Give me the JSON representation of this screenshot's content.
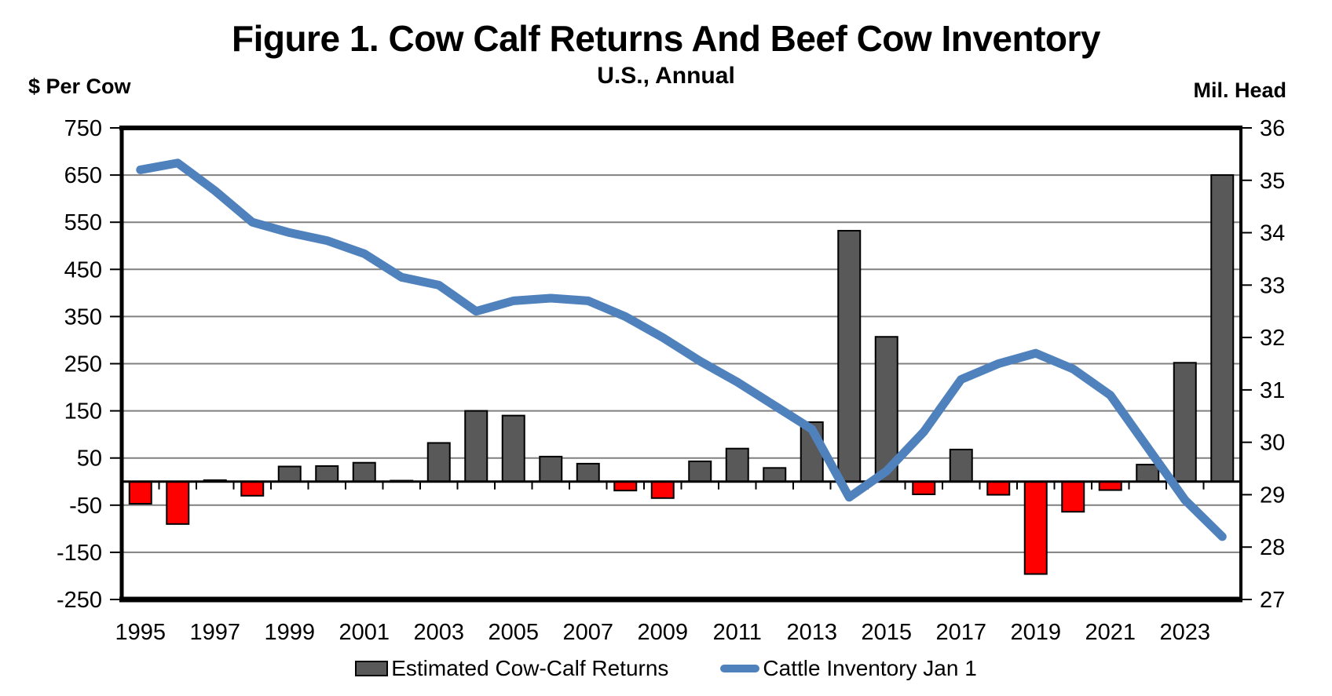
{
  "page": {
    "title": "Figure 1. Cow Calf Returns And Beef Cow Inventory",
    "subtitle": "U.S., Annual",
    "left_axis_unit": "$ Per Cow",
    "right_axis_unit": "Mil. Head"
  },
  "legend": {
    "bar_label": "Estimated Cow-Calf Returns",
    "line_label": "Cattle Inventory Jan 1"
  },
  "colors": {
    "bar_positive": "#595959",
    "bar_negative": "#FF0000",
    "bar_outline": "#000000",
    "line": "#4F81BD",
    "grid": "#808080",
    "axis": "#000000",
    "background": "#FFFFFF"
  },
  "chart_data": {
    "type": "combo",
    "title": "Figure 1. Cow Calf Returns And Beef Cow Inventory",
    "subtitle": "U.S., Annual",
    "categories": [
      1995,
      1996,
      1997,
      1998,
      1999,
      2000,
      2001,
      2002,
      2003,
      2004,
      2005,
      2006,
      2007,
      2008,
      2009,
      2010,
      2011,
      2012,
      2013,
      2014,
      2015,
      2016,
      2017,
      2018,
      2019,
      2020,
      2021,
      2022,
      2023,
      2024
    ],
    "series": [
      {
        "name": "Estimated Cow-Calf Returns",
        "type": "bar",
        "axis": "left",
        "units": "$ per cow",
        "values": [
          -47,
          -90,
          3,
          -30,
          32,
          33,
          40,
          2,
          82,
          150,
          140,
          53,
          38,
          -19,
          -35,
          43,
          70,
          29,
          126,
          532,
          307,
          -27,
          68,
          -28,
          -196,
          -64,
          -18,
          36,
          252,
          650
        ]
      },
      {
        "name": "Cattle Inventory Jan 1",
        "type": "line",
        "axis": "right",
        "units": "million head",
        "values": [
          35.2,
          35.33,
          34.8,
          34.2,
          34.0,
          33.85,
          33.6,
          33.15,
          33.0,
          32.5,
          32.7,
          32.75,
          32.7,
          32.4,
          32.0,
          31.55,
          31.15,
          30.7,
          30.25,
          28.95,
          29.45,
          30.2,
          31.2,
          31.5,
          31.7,
          31.4,
          30.9,
          29.9,
          28.9,
          28.2
        ]
      }
    ],
    "left_axis": {
      "label": "$ Per Cow",
      "min": -250,
      "max": 750,
      "tick_step": 100,
      "ticks": [
        750,
        650,
        550,
        450,
        350,
        250,
        150,
        50,
        -50,
        -150,
        -250
      ]
    },
    "right_axis": {
      "label": "Mil. Head",
      "min": 27,
      "max": 36,
      "tick_step": 1,
      "ticks": [
        36,
        35,
        34,
        33,
        32,
        31,
        30,
        29,
        28,
        27
      ]
    },
    "x_axis": {
      "tick_labels": [
        "1995",
        "1997",
        "1999",
        "2001",
        "2003",
        "2005",
        "2007",
        "2009",
        "2011",
        "2013",
        "2015",
        "2017",
        "2019",
        "2021",
        "2023"
      ]
    },
    "grid": {
      "show": true,
      "lines_at": [
        650,
        550,
        450,
        350,
        250,
        150,
        50,
        -50,
        -150
      ]
    },
    "legend_position": "bottom"
  }
}
